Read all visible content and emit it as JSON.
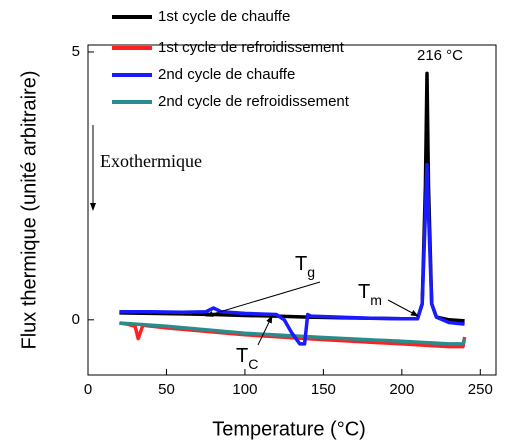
{
  "chart_data": {
    "type": "line",
    "x_label": "Temperature (°C)",
    "y_label": "Flux thermique (unité arbitraire)",
    "xlim": [
      0,
      260
    ],
    "ylim": [
      -1.03,
      5.13
    ],
    "xticks": [
      0,
      50,
      100,
      150,
      200,
      250
    ],
    "yticks": [
      0,
      5
    ],
    "grid": false,
    "series": [
      {
        "name": "1st cycle de chauffe",
        "color": "#000000",
        "label_color": "#000000",
        "x": [
          20,
          40,
          60,
          80,
          100,
          120,
          140,
          160,
          180,
          200,
          210,
          213,
          215,
          216,
          217,
          219,
          222,
          230,
          240
        ],
        "values": [
          0.13,
          0.12,
          0.11,
          0.1,
          0.08,
          0.07,
          0.05,
          0.04,
          0.03,
          0.02,
          0.02,
          0.3,
          2.5,
          4.6,
          2.5,
          0.3,
          0.05,
          0.0,
          -0.02
        ]
      },
      {
        "name": "1st cycle de refroidissement",
        "color": "#ff2020",
        "label_color": "#ff0000",
        "x": [
          240,
          239,
          230,
          200,
          150,
          100,
          50,
          35,
          32,
          30,
          25,
          20
        ],
        "values": [
          -0.32,
          -0.5,
          -0.5,
          -0.45,
          -0.37,
          -0.28,
          -0.15,
          -0.1,
          -0.35,
          -0.12,
          -0.08,
          -0.06
        ]
      },
      {
        "name": "2nd cycle de chauffe",
        "color": "#1a1aff",
        "label_color": "#1a1a9a",
        "x": [
          20,
          40,
          60,
          75,
          80,
          85,
          100,
          120,
          125,
          130,
          135,
          138,
          140,
          142,
          160,
          180,
          200,
          210,
          213,
          215,
          216,
          217,
          219,
          222,
          230,
          240
        ],
        "values": [
          0.15,
          0.15,
          0.14,
          0.15,
          0.22,
          0.15,
          0.12,
          0.1,
          0.0,
          -0.25,
          -0.45,
          -0.45,
          0.1,
          0.07,
          0.05,
          0.03,
          0.02,
          0.02,
          0.3,
          2.0,
          2.9,
          2.0,
          0.3,
          0.05,
          -0.05,
          -0.08
        ]
      },
      {
        "name": "2nd cycle de refroidissement",
        "color": "#2a8c8c",
        "label_color": "#008000",
        "x": [
          240,
          239,
          230,
          200,
          150,
          100,
          50,
          20
        ],
        "values": [
          -0.35,
          -0.45,
          -0.45,
          -0.4,
          -0.33,
          -0.25,
          -0.12,
          -0.06
        ]
      }
    ],
    "annotations": [
      {
        "text": "216 °C"
      },
      {
        "text": "Exothermique"
      },
      {
        "text": "T",
        "sub": "g"
      },
      {
        "text": "T",
        "sub": "m"
      },
      {
        "text": "T",
        "sub": "C"
      }
    ]
  }
}
